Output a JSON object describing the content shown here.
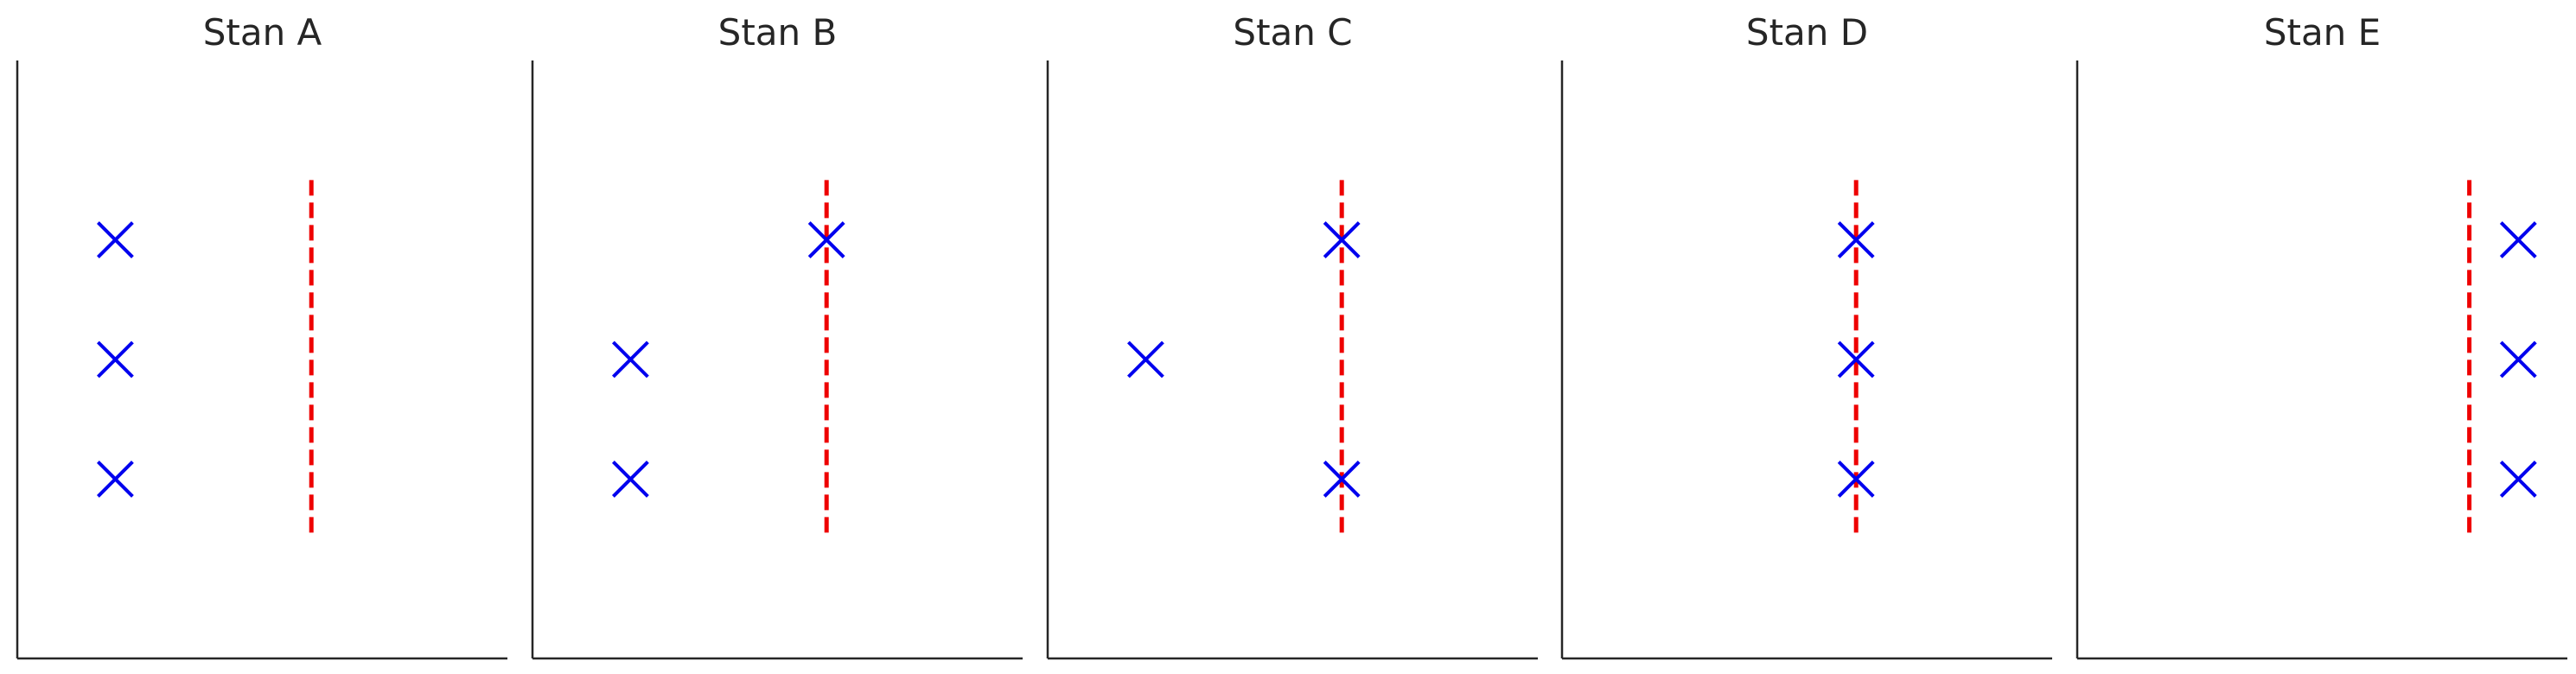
{
  "chart_data": [
    {
      "type": "scatter",
      "title": "Stan A",
      "xlabel": "",
      "ylabel": "",
      "grid": false,
      "xlim": [
        0,
        10
      ],
      "ylim": [
        0,
        10
      ],
      "points": [
        {
          "x": 2.0,
          "y": 7.0
        },
        {
          "x": 2.0,
          "y": 5.0
        },
        {
          "x": 2.0,
          "y": 3.0
        }
      ],
      "threshold_x": 6.0,
      "threshold_range": [
        2.0,
        8.0
      ]
    },
    {
      "type": "scatter",
      "title": "Stan B",
      "xlabel": "",
      "ylabel": "",
      "grid": false,
      "xlim": [
        0,
        10
      ],
      "ylim": [
        0,
        10
      ],
      "points": [
        {
          "x": 6.0,
          "y": 7.0
        },
        {
          "x": 2.0,
          "y": 5.0
        },
        {
          "x": 2.0,
          "y": 3.0
        }
      ],
      "threshold_x": 6.0,
      "threshold_range": [
        2.0,
        8.0
      ]
    },
    {
      "type": "scatter",
      "title": "Stan C",
      "xlabel": "",
      "ylabel": "",
      "grid": false,
      "xlim": [
        0,
        10
      ],
      "ylim": [
        0,
        10
      ],
      "points": [
        {
          "x": 6.0,
          "y": 7.0
        },
        {
          "x": 2.0,
          "y": 5.0
        },
        {
          "x": 6.0,
          "y": 3.0
        }
      ],
      "threshold_x": 6.0,
      "threshold_range": [
        2.0,
        8.0
      ]
    },
    {
      "type": "scatter",
      "title": "Stan D",
      "xlabel": "",
      "ylabel": "",
      "grid": false,
      "xlim": [
        0,
        10
      ],
      "ylim": [
        0,
        10
      ],
      "points": [
        {
          "x": 6.0,
          "y": 7.0
        },
        {
          "x": 6.0,
          "y": 5.0
        },
        {
          "x": 6.0,
          "y": 3.0
        }
      ],
      "threshold_x": 6.0,
      "threshold_range": [
        2.0,
        8.0
      ]
    },
    {
      "type": "scatter",
      "title": "Stan E",
      "xlabel": "",
      "ylabel": "",
      "grid": false,
      "xlim": [
        0,
        10
      ],
      "ylim": [
        0,
        10
      ],
      "points": [
        {
          "x": 9.0,
          "y": 7.0
        },
        {
          "x": 9.0,
          "y": 5.0
        },
        {
          "x": 9.0,
          "y": 3.0
        }
      ],
      "threshold_x": 8.0,
      "threshold_range": [
        2.0,
        8.0
      ]
    }
  ],
  "colors": {
    "marker": "#0000ee",
    "threshold": "#ee0000",
    "axis": "#262626",
    "title": "#262626"
  },
  "marker_icon": "x-marker-icon"
}
